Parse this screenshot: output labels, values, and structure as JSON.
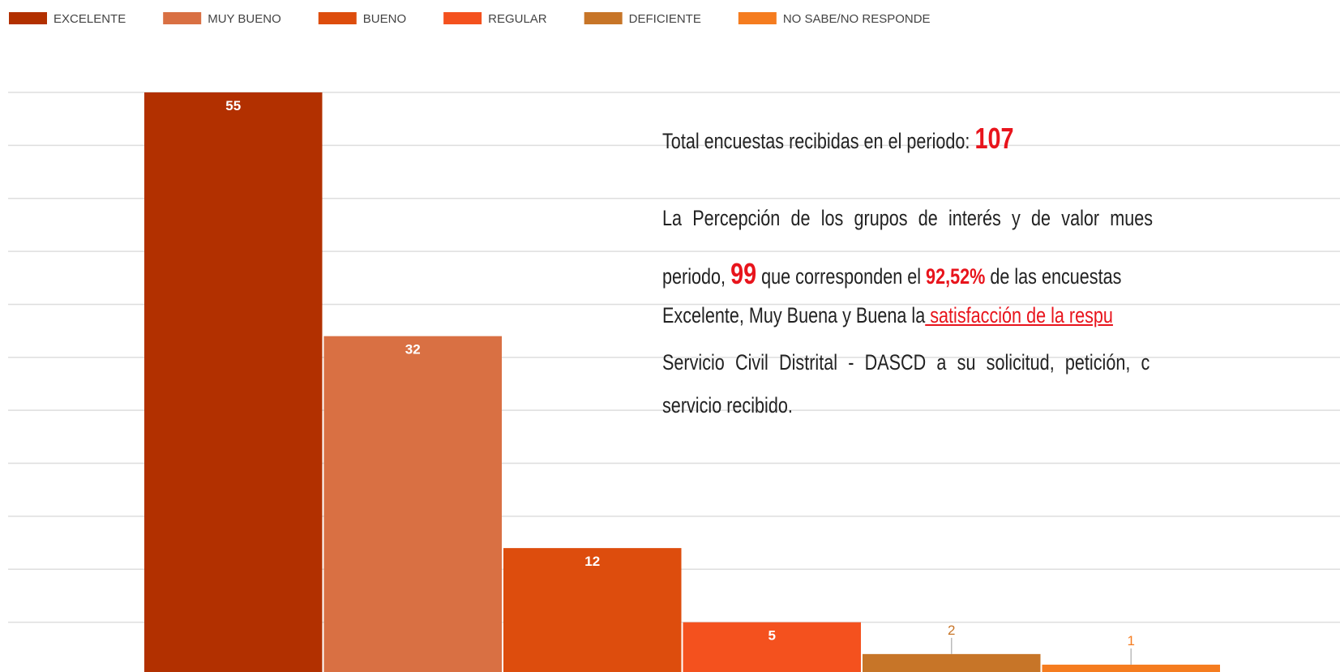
{
  "chart_data": {
    "type": "bar",
    "categories": [
      "EXCELENTE",
      "MUY BUENO",
      "BUENO",
      "REGULAR",
      "DEFICIENTE",
      "NO SABE/NO RESPONDE"
    ],
    "values": [
      55,
      32,
      12,
      5,
      2,
      1
    ],
    "colors": [
      "#b23000",
      "#d97043",
      "#dd4d0d",
      "#f4511e",
      "#c77528",
      "#f57c1f"
    ],
    "ylim": [
      0,
      55
    ],
    "yticks": [
      5,
      10,
      15,
      20,
      25,
      30,
      35,
      40,
      45,
      50,
      55
    ],
    "grid": true,
    "legend": "top-left",
    "annotations": [
      {
        "segments": [
          {
            "text": "Total encuestas recibidas en el periodo: "
          },
          {
            "text": "107",
            "style": "big"
          }
        ]
      },
      {
        "segments": [
          {
            "text": "La Percepción de los grupos de interés y de valor mues"
          }
        ],
        "justify": true
      },
      {
        "segments": [
          {
            "text": "periodo, "
          },
          {
            "text": "99",
            "style": "big"
          },
          {
            "text": " que corresponden el "
          },
          {
            "text": "92,52%",
            "style": "bold"
          },
          {
            "text": " de las encuestas"
          }
        ]
      },
      {
        "segments": [
          {
            "text": "Excelente, Muy Buena y Buena la"
          },
          {
            "text": " satisfacción de la respu",
            "style": "link"
          }
        ]
      },
      {
        "segments": [
          {
            "text": "Servicio Civil Distrital - DASCD a su solicitud, petición, c"
          }
        ],
        "justify": true
      },
      {
        "segments": [
          {
            "text": "servicio recibido."
          }
        ]
      }
    ]
  }
}
